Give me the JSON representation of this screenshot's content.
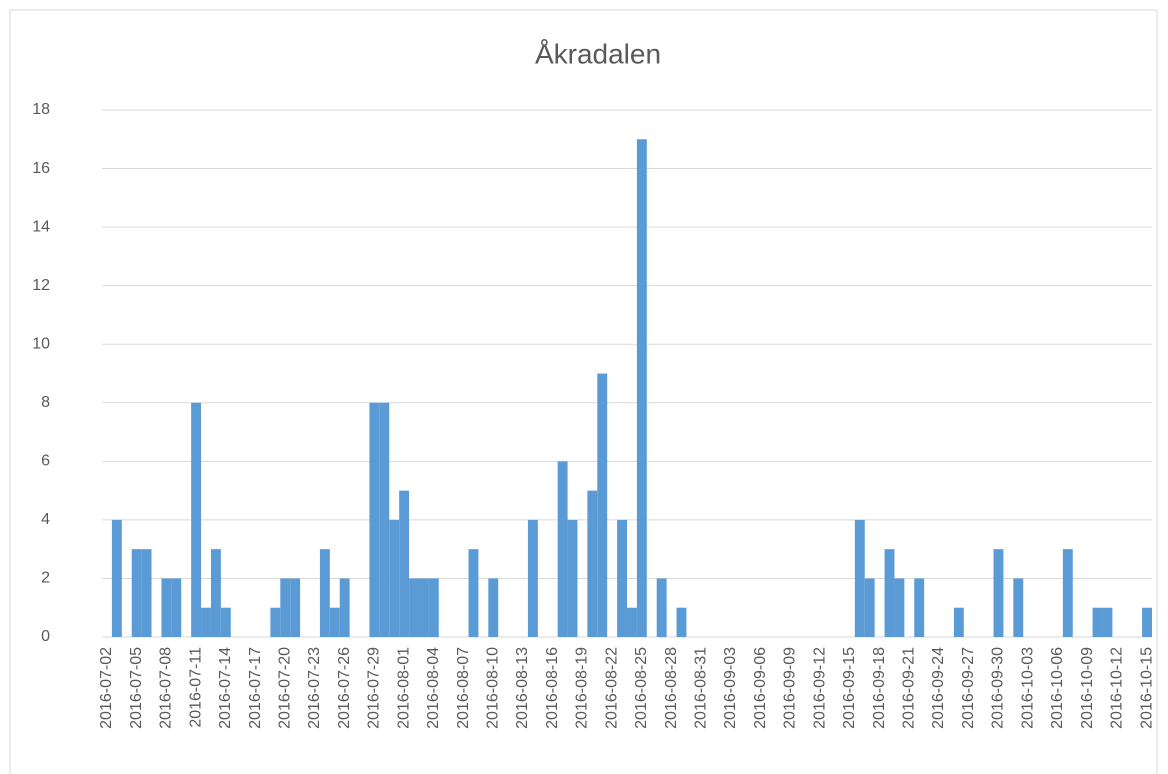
{
  "chart_data": {
    "type": "bar",
    "title": "Åkradalen",
    "categories": [
      "2016-07-02",
      null,
      null,
      "2016-07-05",
      null,
      null,
      "2016-07-08",
      null,
      null,
      "2016-07-11",
      null,
      null,
      "2016-07-14",
      null,
      null,
      "2016-07-17",
      null,
      null,
      "2016-07-20",
      null,
      null,
      "2016-07-23",
      null,
      null,
      "2016-07-26",
      null,
      null,
      "2016-07-29",
      null,
      null,
      "2016-08-01",
      null,
      null,
      "2016-08-04",
      null,
      null,
      "2016-08-07",
      null,
      null,
      "2016-08-10",
      null,
      null,
      "2016-08-13",
      null,
      null,
      "2016-08-16",
      null,
      null,
      "2016-08-19",
      null,
      null,
      "2016-08-22",
      null,
      null,
      "2016-08-25",
      null,
      null,
      "2016-08-28",
      null,
      null,
      "2016-08-31",
      null,
      null,
      "2016-09-03",
      null,
      null,
      "2016-09-06",
      null,
      null,
      "2016-09-09",
      null,
      null,
      "2016-09-12",
      null,
      null,
      "2016-09-15",
      null,
      null,
      "2016-09-18",
      null,
      null,
      "2016-09-21",
      null,
      null,
      "2016-09-24",
      null,
      null,
      "2016-09-27",
      null,
      null,
      "2016-09-30",
      null,
      null,
      "2016-10-03",
      null,
      null,
      "2016-10-06",
      null,
      null,
      "2016-10-09",
      null,
      null,
      "2016-10-12",
      null,
      null,
      "2016-10-15"
    ],
    "values": [
      0,
      4,
      0,
      3,
      3,
      0,
      2,
      2,
      0,
      8,
      1,
      3,
      1,
      0,
      0,
      0,
      0,
      1,
      2,
      2,
      0,
      0,
      3,
      1,
      2,
      0,
      0,
      8,
      8,
      4,
      5,
      2,
      2,
      2,
      0,
      0,
      0,
      3,
      0,
      2,
      0,
      0,
      0,
      4,
      0,
      0,
      6,
      4,
      0,
      5,
      9,
      0,
      4,
      1,
      17,
      0,
      2,
      0,
      1,
      0,
      0,
      0,
      0,
      0,
      0,
      0,
      0,
      0,
      0,
      0,
      0,
      0,
      0,
      0,
      0,
      0,
      4,
      2,
      0,
      3,
      2,
      0,
      2,
      0,
      0,
      0,
      1,
      0,
      0,
      0,
      3,
      0,
      2,
      0,
      0,
      0,
      0,
      3,
      0,
      0,
      1,
      1,
      0,
      0,
      0,
      1
    ],
    "color": "#5b9bd5",
    "ylim": [
      0,
      18
    ],
    "yticks": [
      0,
      2,
      4,
      6,
      8,
      10,
      12,
      14,
      16,
      18
    ],
    "grid": true
  }
}
